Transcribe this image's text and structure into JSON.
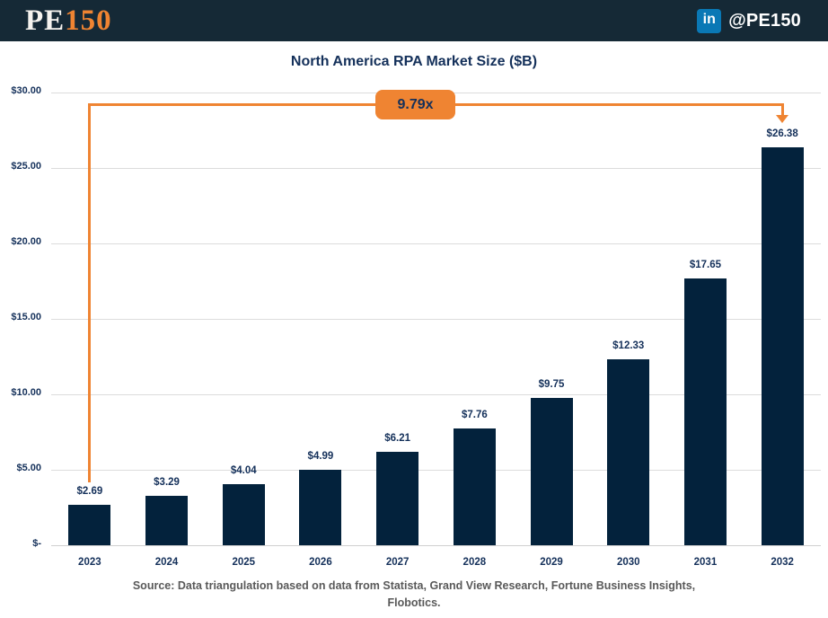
{
  "header": {
    "logo": {
      "pe": "PE",
      "num": "150"
    },
    "linkedin": {
      "icon_text": "in",
      "handle": "@PE150"
    }
  },
  "chart_data": {
    "type": "bar",
    "title": "North America RPA Market Size ($B)",
    "categories": [
      "2023",
      "2024",
      "2025",
      "2026",
      "2027",
      "2028",
      "2029",
      "2030",
      "2031",
      "2032"
    ],
    "values": [
      2.69,
      3.29,
      4.04,
      4.99,
      6.21,
      7.76,
      9.75,
      12.33,
      17.65,
      26.38
    ],
    "value_labels": [
      "$2.69",
      "$3.29",
      "$4.04",
      "$4.99",
      "$6.21",
      "$7.76",
      "$9.75",
      "$12.33",
      "$17.65",
      "$26.38"
    ],
    "xlabel": "",
    "ylabel": "",
    "ylim": [
      0,
      30
    ],
    "y_ticks": [
      {
        "v": 30,
        "label": "$30.00"
      },
      {
        "v": 25,
        "label": "$25.00"
      },
      {
        "v": 20,
        "label": "$20.00"
      },
      {
        "v": 15,
        "label": "$15.00"
      },
      {
        "v": 10,
        "label": "$10.00"
      },
      {
        "v": 5,
        "label": "$5.00"
      },
      {
        "v": 0,
        "label": "$-"
      }
    ],
    "grid": "horizontal-only",
    "legend": "none",
    "annotation": {
      "label": "9.79x",
      "from_category": "2023",
      "to_category": "2032",
      "meaning": "growth multiple from 2023 to 2032"
    }
  },
  "colors": {
    "header_bg": "#152936",
    "bar": "#03223c",
    "text_navy": "#14305a",
    "accent_orange": "#ef8432",
    "linkedin_blue": "#0a78b5",
    "gridline": "#dcdcdc",
    "source_gray": "#595959"
  },
  "source": {
    "line1": "Source: Data triangulation based on data from Statista, Grand View Research, Fortune Business Insights,",
    "line2": "Flobotics."
  }
}
